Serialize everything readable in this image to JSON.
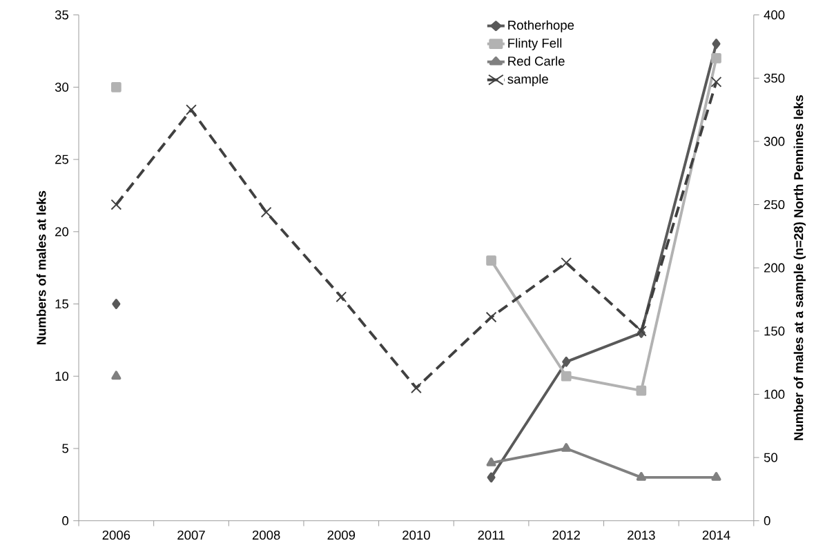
{
  "chart_data": {
    "type": "line",
    "ylabel": "Numbers of males at leks",
    "y2label": "Number of males at a sample (n=28) North Pennines leks",
    "categories": [
      "2006",
      "2007",
      "2008",
      "2009",
      "2010",
      "2011",
      "2012",
      "2013",
      "2014"
    ],
    "ylim": [
      0,
      35
    ],
    "yticks": [
      0,
      5,
      10,
      15,
      20,
      25,
      30,
      35
    ],
    "y2lim": [
      0,
      400
    ],
    "y2ticks": [
      0,
      50,
      100,
      150,
      200,
      250,
      300,
      350,
      400
    ],
    "legend": "top right",
    "series": [
      {
        "name": "Rotherhope",
        "color": "#595959",
        "marker": "diamond",
        "line_style": "solid",
        "values": [
          15,
          null,
          null,
          null,
          null,
          3,
          11,
          13,
          33
        ]
      },
      {
        "name": "Flinty Fell",
        "color": "#b2b2b2",
        "marker": "square",
        "line_style": "solid",
        "values": [
          30,
          null,
          null,
          null,
          null,
          18,
          10,
          9,
          32
        ]
      },
      {
        "name": "Red Carle",
        "color": "#808080",
        "marker": "triangle",
        "line_style": "solid",
        "values": [
          10,
          null,
          null,
          null,
          null,
          4,
          5,
          3,
          3
        ]
      },
      {
        "name": "sample",
        "color": "#404040",
        "marker": "cross",
        "line_style": "dashed",
        "axis": "y2",
        "values": [
          250,
          325,
          244,
          177,
          105,
          161,
          204,
          150,
          347
        ]
      }
    ]
  }
}
